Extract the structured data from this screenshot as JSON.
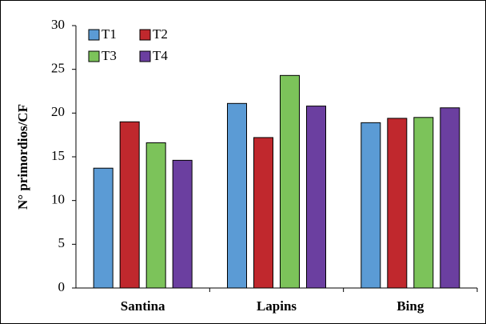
{
  "chart_data": {
    "type": "bar",
    "y_label": "N° primordios/CF",
    "categories": [
      "Santina",
      "Lapins",
      "Bing"
    ],
    "series": [
      {
        "name": "T1",
        "color": "#5b9bd5",
        "values": [
          13.7,
          21.1,
          18.9
        ]
      },
      {
        "name": "T2",
        "color": "#c0282d",
        "values": [
          19.0,
          17.2,
          19.4
        ]
      },
      {
        "name": "T3",
        "color": "#7cc35a",
        "values": [
          16.6,
          24.3,
          19.5
        ]
      },
      {
        "name": "T4",
        "color": "#6b3fa0",
        "values": [
          14.6,
          20.8,
          20.6
        ]
      }
    ],
    "ylim": [
      0,
      30
    ],
    "yticks": [
      0,
      5,
      10,
      15,
      20,
      25,
      30
    ],
    "legend": "upper left"
  }
}
